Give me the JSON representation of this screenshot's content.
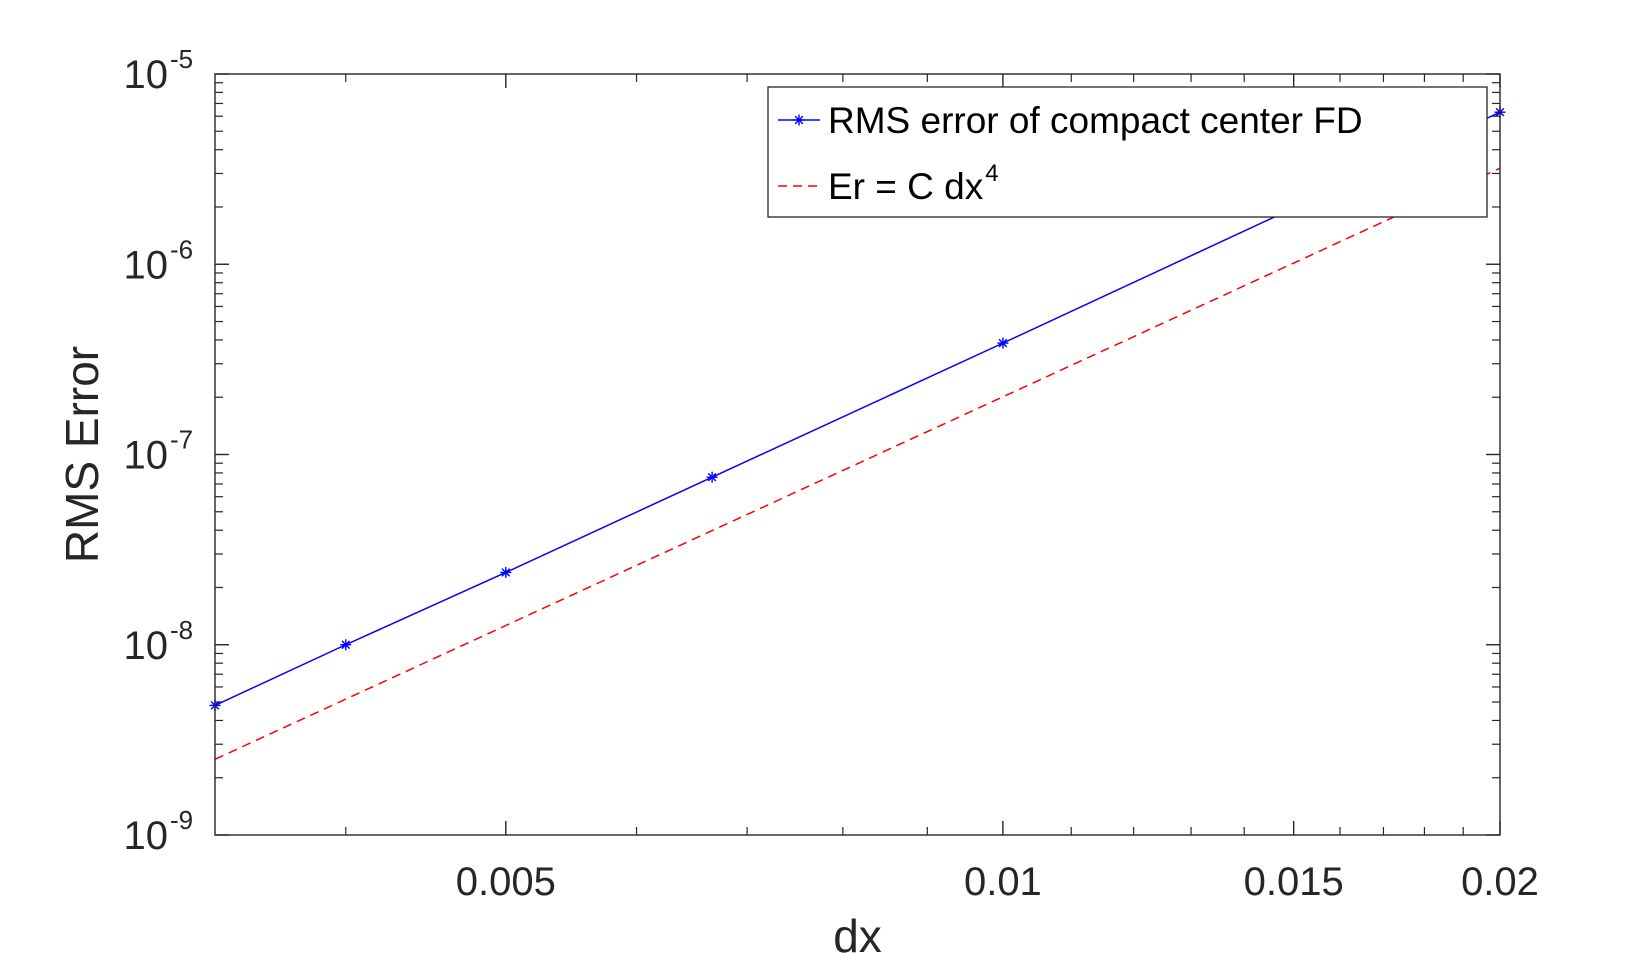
{
  "chart_data": {
    "type": "line",
    "xscale": "log",
    "yscale": "log",
    "xlabel": "dx",
    "ylabel": "RMS Error",
    "xlim": [
      0.00333333,
      0.02
    ],
    "ylim": [
      1e-09,
      1e-05
    ],
    "xticks": [
      {
        "value": 0.005,
        "label": "0.005"
      },
      {
        "value": 0.01,
        "label": "0.01"
      },
      {
        "value": 0.015,
        "label": "0.015"
      },
      {
        "value": 0.02,
        "label": "0.02"
      }
    ],
    "yticks": [
      {
        "value": 1e-09,
        "base": "10",
        "exp": "-9"
      },
      {
        "value": 1e-08,
        "base": "10",
        "exp": "-8"
      },
      {
        "value": 1e-07,
        "base": "10",
        "exp": "-7"
      },
      {
        "value": 1e-06,
        "base": "10",
        "exp": "-6"
      },
      {
        "value": 1e-05,
        "base": "10",
        "exp": "-5"
      }
    ],
    "grid": false,
    "legend_position": "top-right",
    "series": [
      {
        "name": "RMS error of compact center FD",
        "color": "#0000ff",
        "line_style": "solid",
        "marker": "asterisk",
        "x": [
          0.00333333,
          0.004,
          0.005,
          0.00666667,
          0.01,
          0.02
        ],
        "y": [
          4.8e-09,
          1e-08,
          2.4e-08,
          7.6e-08,
          3.85e-07,
          6.3e-06
        ]
      },
      {
        "name_main": "Er = C dx",
        "name_sup": "4",
        "color": "#ff0000",
        "line_style": "dashed",
        "marker": "none",
        "x": [
          0.00333333,
          0.02
        ],
        "y": [
          2.5e-09,
          3.2e-06
        ]
      }
    ]
  }
}
